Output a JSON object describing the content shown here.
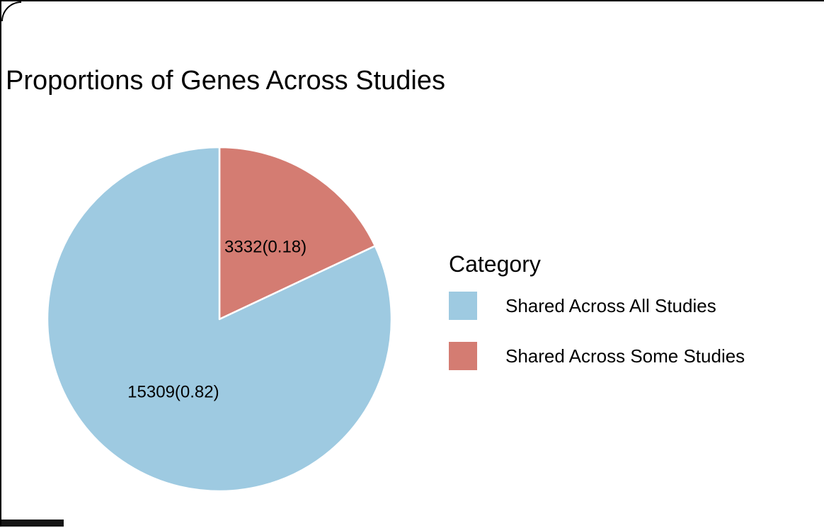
{
  "title": "Proportions of Genes Across Studies",
  "legend": {
    "title": "Category",
    "items": [
      {
        "label": "Shared Across All Studies",
        "color": "#9ECAE1"
      },
      {
        "label": "Shared Across Some Studies",
        "color": "#D47C72"
      }
    ]
  },
  "chart_data": {
    "type": "pie",
    "title": "Proportions of Genes Across Studies",
    "legend_title": "Category",
    "legend_position": "right",
    "start_angle_deg": 0,
    "direction": "clockwise",
    "slices": [
      {
        "label": "Shared Across All Studies",
        "value": 15309,
        "proportion": 0.82,
        "data_label": "15309(0.82)",
        "color": "#9ECAE1"
      },
      {
        "label": "Shared Across Some Studies",
        "value": 3332,
        "proportion": 0.18,
        "data_label": "3332(0.18)",
        "color": "#D47C72"
      }
    ]
  }
}
